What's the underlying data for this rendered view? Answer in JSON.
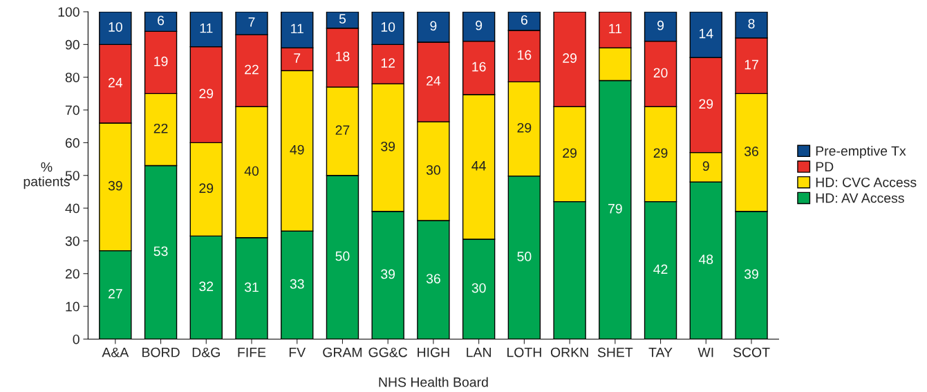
{
  "chart_data": {
    "type": "bar",
    "stacked": true,
    "xlabel": "NHS Health Board",
    "ylabel": "%\npatients",
    "categories": [
      "A&A",
      "BORD",
      "D&G",
      "FIFE",
      "FV",
      "GRAM",
      "GG&C",
      "HIGH",
      "LAN",
      "LOTH",
      "ORKN",
      "SHET",
      "TAY",
      "WI",
      "SCOT"
    ],
    "series": [
      {
        "name": "HD: AV Access",
        "color": "#00a651",
        "values": [
          27,
          53,
          31.5,
          31,
          33,
          50,
          39,
          36.2,
          30.5,
          49.8,
          42,
          79,
          42,
          48,
          39
        ],
        "value_labels": [
          "27",
          "53",
          "32",
          "31",
          "33",
          "50",
          "39",
          "36",
          "30",
          "50",
          null,
          "79",
          "42",
          "48",
          "39"
        ]
      },
      {
        "name": "HD: CVC Access",
        "color": "#ffdd00",
        "values": [
          39,
          22,
          28.5,
          40,
          49,
          27,
          39,
          30.2,
          44.2,
          28.8,
          29,
          10,
          29,
          9,
          36
        ],
        "value_labels": [
          "39",
          "22",
          "29",
          "40",
          "49",
          "27",
          "39",
          "30",
          "44",
          "29",
          "29",
          null,
          "29",
          "9",
          "36"
        ]
      },
      {
        "name": "PD",
        "color": "#e8312a",
        "values": [
          24,
          19,
          29.3,
          22,
          7,
          18,
          12,
          24.3,
          16.3,
          15.7,
          29,
          11,
          20,
          29,
          17
        ],
        "value_labels": [
          "24",
          "19",
          "29",
          "22",
          "7",
          "18",
          "12",
          "24",
          "16",
          "16",
          "29",
          "11",
          "20",
          "29",
          "17"
        ]
      },
      {
        "name": "Pre-emptive Tx",
        "color": "#0d4a8c",
        "values": [
          10,
          6,
          10.7,
          7,
          11,
          5,
          10,
          9.3,
          9,
          5.7,
          null,
          null,
          9,
          14,
          8
        ],
        "value_labels": [
          "10",
          "6",
          "11",
          "7",
          "11",
          "5",
          "10",
          "9",
          "9",
          "6",
          null,
          null,
          "9",
          "14",
          "8"
        ]
      }
    ],
    "ylim": [
      0,
      100
    ],
    "yticks": [
      0,
      10,
      20,
      30,
      40,
      50,
      60,
      70,
      80,
      90,
      100
    ],
    "grid": false,
    "legend": "right"
  }
}
